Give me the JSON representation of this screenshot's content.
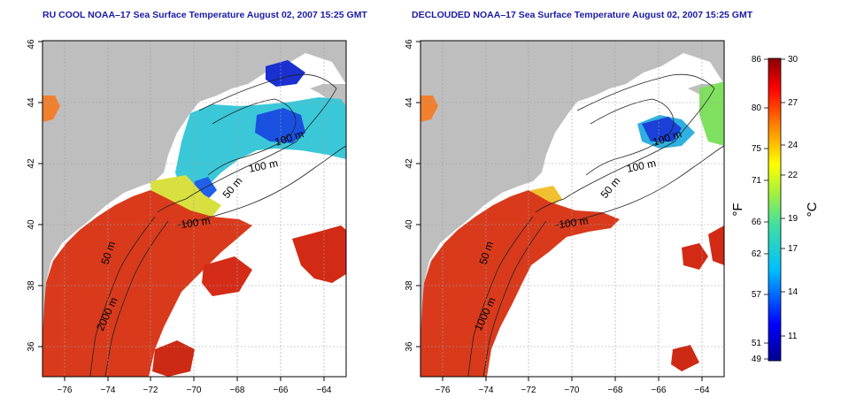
{
  "titles": {
    "left": "RU COOL NOAA–17 Sea Surface Temperature August 02, 2007 15:25 GMT",
    "right": "DECLOUDED NOAA–17 Sea Surface Temperature August 02, 2007 15:25 GMT"
  },
  "axes": {
    "x_ticks": [
      "−76",
      "−74",
      "−72",
      "−70",
      "−68",
      "−66",
      "−64"
    ],
    "y_ticks": [
      "36",
      "38",
      "40",
      "42",
      "44",
      "46"
    ]
  },
  "isobath_labels": [
    "100 m",
    "100 m",
    "50 m",
    "100 m",
    "50 m",
    "2000 m",
    "1000 m"
  ],
  "colorbar": {
    "f_label": "°F",
    "c_label": "°C",
    "f_ticks": [
      "86",
      "80",
      "75",
      "71",
      "66",
      "62",
      "57",
      "51",
      "49"
    ],
    "c_ticks": [
      "30",
      "27",
      "24",
      "22",
      "19",
      "17",
      "14",
      "11"
    ]
  },
  "colors": {
    "land": "#bebebe",
    "no_data": "#ffffff",
    "warm": "#d93a1c",
    "title": "#1a1aa6"
  }
}
